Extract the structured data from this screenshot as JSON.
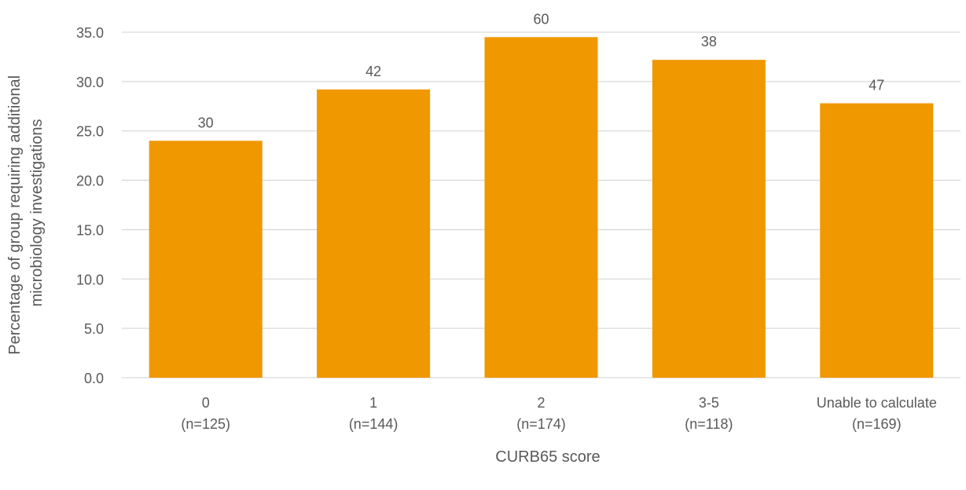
{
  "chart_data": {
    "type": "bar",
    "categories": [
      "0",
      "1",
      "2",
      "3-5",
      "Unable to calculate"
    ],
    "category_sublabels": [
      "(n=125)",
      "(n=144)",
      "(n=174)",
      "(n=118)",
      "(n=169)"
    ],
    "values": [
      24.0,
      29.2,
      34.5,
      32.2,
      27.8
    ],
    "data_labels": [
      "30",
      "42",
      "60",
      "38",
      "47"
    ],
    "xlabel": "CURB65 score",
    "ylabel_lines": [
      "Percentage of group requiring additional",
      "microbiology investigations"
    ],
    "ylim": [
      0,
      35
    ],
    "yticks": [
      0,
      5,
      10,
      15,
      20,
      25,
      30,
      35
    ],
    "ytick_labels": [
      "0.0",
      "5.0",
      "10.0",
      "15.0",
      "20.0",
      "25.0",
      "30.0",
      "35.0"
    ],
    "grid": true,
    "legend": "none",
    "colors": {
      "bar": "#F09800",
      "grid": "#D9D9D9",
      "text": "#595959"
    }
  }
}
